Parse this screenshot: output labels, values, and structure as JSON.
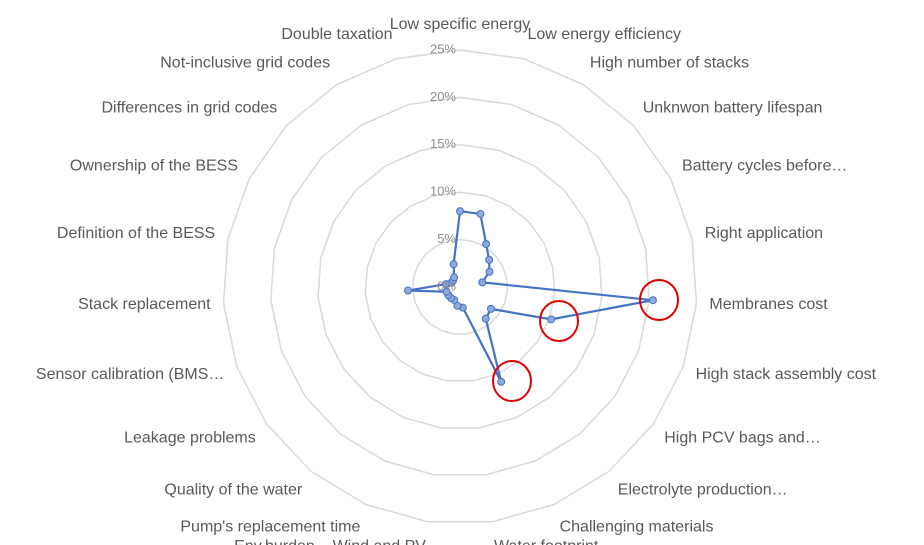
{
  "chart_data": {
    "type": "radar",
    "categories": [
      "Low specific energy",
      "Low energy efficiency",
      "High number of stacks",
      "Unknwon battery lifespan",
      "Battery cycles before…",
      "Right application",
      "Membranes cost",
      "High stack assembly cost",
      "High PCV bags and…",
      "Electrolyte production…",
      "Challenging materials",
      "Water footprint",
      "Env.burden _ Wind and PV",
      "Pump's replacement time",
      "Quality of the water",
      "Leakage problems",
      "Sensor calibration (BMS…",
      "Stack replacement",
      "Definition of the BESS",
      "Ownership of the BESS",
      "Differences in grid codes",
      "Not-inclusive grid codes",
      "Double taxation"
    ],
    "series": [
      {
        "color": "#4472c4",
        "values": [
          8,
          8,
          5.3,
          4.2,
          3.5,
          2.4,
          20.4,
          10.2,
          4,
          4.3,
          10.9,
          2.2,
          2,
          1.5,
          1.5,
          1.5,
          1.5,
          5.5,
          1.5,
          1,
          1,
          1.2,
          2.5
        ]
      }
    ],
    "ylim": [
      0,
      25
    ],
    "yticks": [
      {
        "value": 0,
        "label": "0%"
      },
      {
        "value": 5,
        "label": "5%"
      },
      {
        "value": 10,
        "label": "10%"
      },
      {
        "value": 15,
        "label": "15%"
      },
      {
        "value": 20,
        "label": "20%"
      },
      {
        "value": 25,
        "label": "25%"
      }
    ],
    "grid": true
  }
}
